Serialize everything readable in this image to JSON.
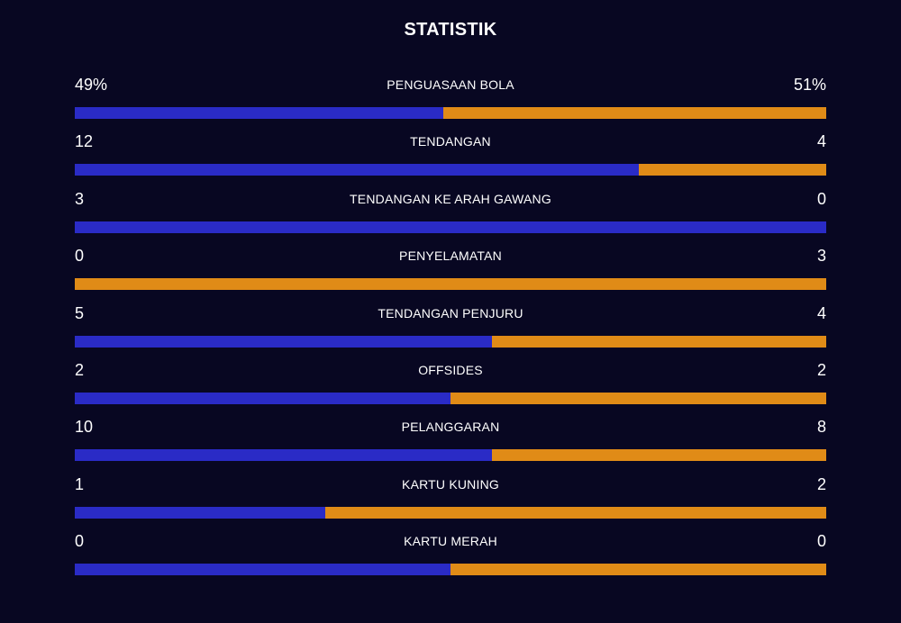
{
  "title": "STATISTIK",
  "colors": {
    "background": "#080722",
    "home": "#2a2bc6",
    "away": "#e08b17",
    "text": "#ffffff"
  },
  "stats": [
    {
      "label": "PENGUASAAN BOLA",
      "home_display": "49%",
      "away_display": "51%",
      "home": 49,
      "away": 51
    },
    {
      "label": "TENDANGAN",
      "home_display": "12",
      "away_display": "4",
      "home": 12,
      "away": 4
    },
    {
      "label": "TENDANGAN KE ARAH GAWANG",
      "home_display": "3",
      "away_display": "0",
      "home": 3,
      "away": 0
    },
    {
      "label": "PENYELAMATAN",
      "home_display": "0",
      "away_display": "3",
      "home": 0,
      "away": 3
    },
    {
      "label": "TENDANGAN PENJURU",
      "home_display": "5",
      "away_display": "4",
      "home": 5,
      "away": 4
    },
    {
      "label": "OFFSIDES",
      "home_display": "2",
      "away_display": "2",
      "home": 2,
      "away": 2
    },
    {
      "label": "PELANGGARAN",
      "home_display": "10",
      "away_display": "8",
      "home": 10,
      "away": 8
    },
    {
      "label": "KARTU KUNING",
      "home_display": "1",
      "away_display": "2",
      "home": 1,
      "away": 2
    },
    {
      "label": "KARTU MERAH",
      "home_display": "0",
      "away_display": "0",
      "home": 0,
      "away": 0
    }
  ]
}
